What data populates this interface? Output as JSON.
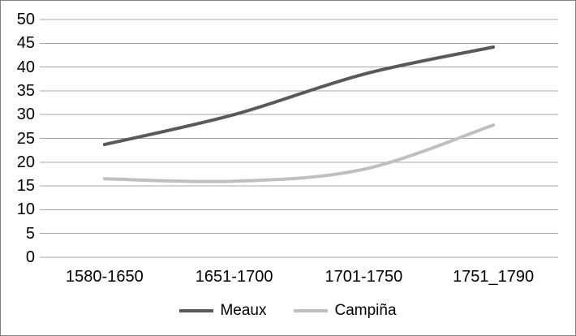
{
  "chart_data": {
    "type": "line",
    "title": "",
    "categories": [
      "1580-1650",
      "1651-1700",
      "1701-1750",
      "1751_1790"
    ],
    "series": [
      {
        "name": "Meaux",
        "values": [
          23.7,
          30,
          38.5,
          44.2
        ],
        "color": "#595959"
      },
      {
        "name": "Campiña",
        "values": [
          16.5,
          16,
          18.5,
          27.8
        ],
        "color": "#bfbfbf"
      }
    ],
    "xlabel": "",
    "ylabel": "",
    "ylim": [
      0,
      50
    ],
    "yticks": [
      0,
      5,
      10,
      15,
      20,
      25,
      30,
      35,
      40,
      45,
      50
    ],
    "grid": "horizontal-only",
    "legend_position": "bottom-center",
    "gridline_color": "#a6a6a6",
    "frame_border_color": "#808080",
    "background_color": "#ffffff",
    "text_color": "#000000",
    "line_width": 4,
    "smoothed_lines": true
  }
}
